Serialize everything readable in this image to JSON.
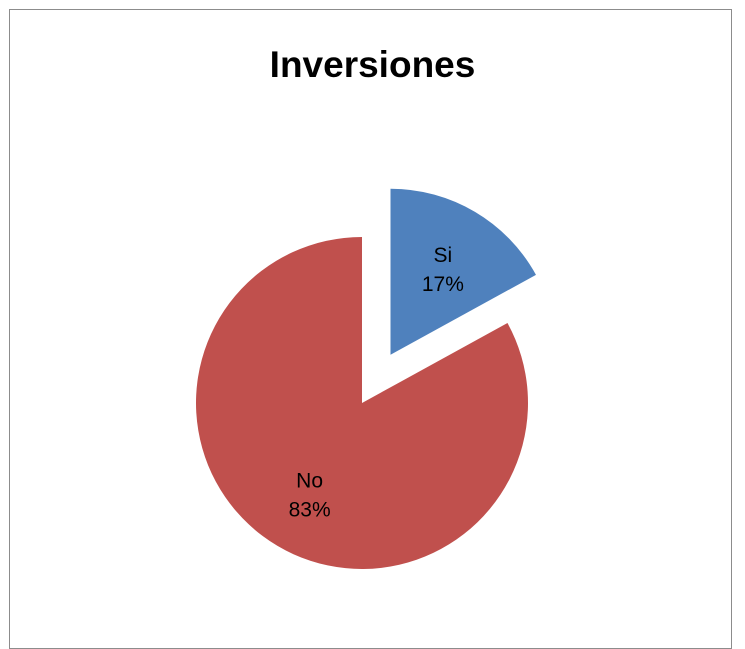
{
  "chart_data": {
    "type": "pie",
    "title": "Inversiones",
    "slices": [
      {
        "label": "Si",
        "value": 17,
        "percent_label": "17%",
        "color": "#4f81bd",
        "exploded": true
      },
      {
        "label": "No",
        "value": 83,
        "percent_label": "83%",
        "color": "#c0504d",
        "exploded": false
      }
    ]
  }
}
